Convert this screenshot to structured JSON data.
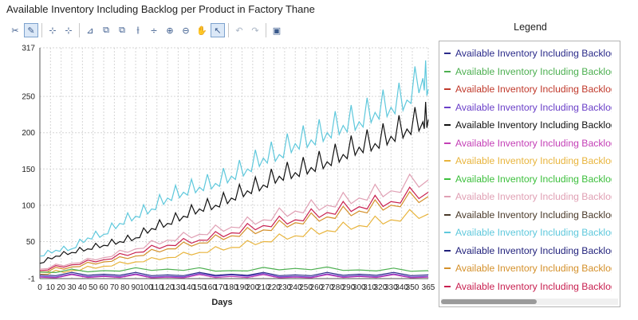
{
  "title": "Available Inventory Including Backlog per Product in Factory Thane",
  "toolbar": {
    "buttons": [
      {
        "name": "reset-icon",
        "glyph": "✂",
        "active": false,
        "disabled": false
      },
      {
        "name": "pen-icon",
        "glyph": "✎",
        "active": true,
        "disabled": false
      },
      {
        "sep": true
      },
      {
        "name": "add-point-icon",
        "glyph": "⊹",
        "active": false,
        "disabled": false
      },
      {
        "name": "remove-point-icon",
        "glyph": "⊹",
        "active": false,
        "disabled": false
      },
      {
        "sep": true
      },
      {
        "name": "axis-scale-icon",
        "glyph": "⊿",
        "active": false,
        "disabled": false
      },
      {
        "name": "zoom-box-icon",
        "glyph": "⧉",
        "active": false,
        "disabled": false
      },
      {
        "name": "zoom-box-alt-icon",
        "glyph": "⧉",
        "active": false,
        "disabled": false
      },
      {
        "name": "split-horizontal-icon",
        "glyph": "⫲",
        "active": false,
        "disabled": false
      },
      {
        "name": "split-vertical-icon",
        "glyph": "÷",
        "active": false,
        "disabled": false
      },
      {
        "name": "zoom-in-icon",
        "glyph": "⊕",
        "active": false,
        "disabled": false
      },
      {
        "name": "zoom-out-icon",
        "glyph": "⊖",
        "active": false,
        "disabled": false
      },
      {
        "name": "pan-hand-icon",
        "glyph": "✋",
        "active": false,
        "disabled": false
      },
      {
        "name": "pointer-icon",
        "glyph": "↖",
        "active": true,
        "disabled": false
      },
      {
        "sep": true
      },
      {
        "name": "undo-icon",
        "glyph": "↶",
        "active": false,
        "disabled": true
      },
      {
        "name": "redo-icon",
        "glyph": "↷",
        "active": false,
        "disabled": true
      },
      {
        "sep": true
      },
      {
        "name": "export-image-icon",
        "glyph": "▣",
        "active": false,
        "disabled": false
      }
    ]
  },
  "legend": {
    "title": "Legend",
    "items": [
      {
        "label": "Available Inventory Including Backlog",
        "color": "#2b2b8a"
      },
      {
        "label": "Available Inventory Including Backlog",
        "color": "#4caf50"
      },
      {
        "label": "Available Inventory Including Backlog",
        "color": "#c0392b"
      },
      {
        "label": "Available Inventory Including Backlog",
        "color": "#6a3fc8"
      },
      {
        "label": "Available Inventory Including Backlog",
        "color": "#111111"
      },
      {
        "label": "Available Inventory Including Backlog",
        "color": "#c43fb6"
      },
      {
        "label": "Available Inventory Including Backlog",
        "color": "#e8b43c"
      },
      {
        "label": "Available Inventory Including Backlog",
        "color": "#3cbf3c"
      },
      {
        "label": "Available Inventory Including Backlog",
        "color": "#e0a0b4"
      },
      {
        "label": "Available Inventory Including Backlog",
        "color": "#4a3a2a"
      },
      {
        "label": "Available Inventory Including Backlog",
        "color": "#5ec8dc"
      },
      {
        "label": "Available Inventory Including Backlog",
        "color": "#1f1f7a"
      },
      {
        "label": "Available Inventory Including Backlog",
        "color": "#d4902a"
      },
      {
        "label": "Available Inventory Including Backlog",
        "color": "#c82050"
      }
    ]
  },
  "chart_data": {
    "type": "line",
    "title": "Available Inventory Including Backlog per Product in Factory Thane",
    "xlabel": "Days",
    "ylabel": "",
    "xlim": [
      0,
      365
    ],
    "ylim": [
      -1,
      317
    ],
    "x_ticks": [
      0,
      10,
      20,
      30,
      40,
      50,
      60,
      70,
      80,
      90,
      100,
      110,
      120,
      130,
      140,
      150,
      160,
      170,
      180,
      190,
      200,
      210,
      220,
      230,
      240,
      250,
      260,
      270,
      280,
      290,
      300,
      310,
      320,
      330,
      340,
      350,
      365
    ],
    "x_tick_labels": [
      "0",
      "10",
      "20",
      "30",
      "40",
      "50",
      "60",
      "70",
      "80",
      "90",
      "100",
      "110",
      "120",
      "130",
      "140",
      "150",
      "160",
      "170",
      "180",
      "190",
      "200",
      "210",
      "220",
      "230",
      "240",
      "250",
      "260",
      "270",
      "280",
      "290",
      "300",
      "310",
      "320",
      "330",
      "340",
      "350",
      "365"
    ],
    "y_ticks": [
      -1,
      50,
      100,
      150,
      200,
      250,
      317
    ],
    "y_tick_labels": [
      "-1",
      "50",
      "100",
      "150",
      "200",
      "250",
      "317"
    ],
    "grid": true,
    "series": [
      {
        "name": "Available Inventory Including Backlog (cyan)",
        "color": "#5ec8dc",
        "x": [
          0,
          15,
          30,
          45,
          60,
          75,
          90,
          105,
          120,
          135,
          150,
          165,
          180,
          195,
          210,
          225,
          240,
          255,
          270,
          285,
          300,
          315,
          330,
          345,
          360,
          365
        ],
        "y": [
          30,
          38,
          40,
          55,
          60,
          75,
          85,
          95,
          110,
          118,
          125,
          130,
          140,
          150,
          165,
          170,
          185,
          190,
          200,
          210,
          215,
          228,
          235,
          245,
          275,
          260
        ]
      },
      {
        "name": "Available Inventory Including Backlog (black)",
        "color": "#111111",
        "x": [
          0,
          15,
          30,
          45,
          60,
          75,
          90,
          105,
          120,
          135,
          150,
          165,
          180,
          195,
          210,
          225,
          240,
          255,
          270,
          285,
          300,
          315,
          330,
          345,
          360,
          365
        ],
        "y": [
          20,
          30,
          35,
          40,
          45,
          50,
          55,
          68,
          75,
          85,
          95,
          100,
          110,
          120,
          128,
          140,
          145,
          152,
          160,
          170,
          180,
          185,
          195,
          205,
          215,
          218
        ]
      },
      {
        "name": "Available Inventory Including Backlog (pink)",
        "color": "#e0a0b4",
        "x": [
          0,
          30,
          60,
          90,
          120,
          150,
          180,
          210,
          240,
          270,
          300,
          330,
          365
        ],
        "y": [
          12,
          20,
          28,
          40,
          52,
          60,
          70,
          80,
          92,
          100,
          110,
          120,
          135
        ]
      },
      {
        "name": "Available Inventory Including Backlog (red)",
        "color": "#c82050",
        "x": [
          0,
          30,
          60,
          90,
          120,
          150,
          180,
          210,
          240,
          270,
          300,
          330,
          365
        ],
        "y": [
          10,
          18,
          25,
          35,
          45,
          52,
          62,
          72,
          80,
          90,
          98,
          105,
          118
        ]
      },
      {
        "name": "Available Inventory Including Backlog (orange)",
        "color": "#d4902a",
        "x": [
          0,
          30,
          60,
          90,
          120,
          150,
          180,
          210,
          240,
          270,
          300,
          330,
          365
        ],
        "y": [
          8,
          15,
          22,
          30,
          40,
          48,
          58,
          66,
          76,
          84,
          92,
          100,
          112
        ]
      },
      {
        "name": "Available Inventory Including Backlog (yellow)",
        "color": "#e8b43c",
        "x": [
          0,
          30,
          60,
          90,
          120,
          150,
          180,
          210,
          240,
          270,
          300,
          330,
          365
        ],
        "y": [
          5,
          10,
          16,
          22,
          28,
          35,
          42,
          50,
          58,
          65,
          72,
          80,
          88
        ]
      },
      {
        "name": "Available Inventory Including Backlog (green)",
        "color": "#4caf50",
        "x": [
          0,
          60,
          120,
          180,
          240,
          300,
          365
        ],
        "y": [
          8,
          10,
          12,
          10,
          13,
          11,
          10
        ]
      },
      {
        "name": "Available Inventory Including Backlog (purple)",
        "color": "#6a3fc8",
        "x": [
          0,
          60,
          120,
          180,
          240,
          300,
          365
        ],
        "y": [
          2,
          3,
          2,
          4,
          2,
          3,
          2
        ]
      },
      {
        "name": "Available Inventory Including Backlog (navy)",
        "color": "#2b2b8a",
        "x": [
          0,
          60,
          120,
          180,
          240,
          300,
          365
        ],
        "y": [
          4,
          5,
          4,
          5,
          4,
          5,
          4
        ]
      },
      {
        "name": "Available Inventory Including Backlog (magenta)",
        "color": "#c43fb6",
        "x": [
          0,
          60,
          120,
          180,
          240,
          300,
          365
        ],
        "y": [
          1,
          2,
          1,
          2,
          1,
          2,
          1
        ]
      }
    ]
  }
}
